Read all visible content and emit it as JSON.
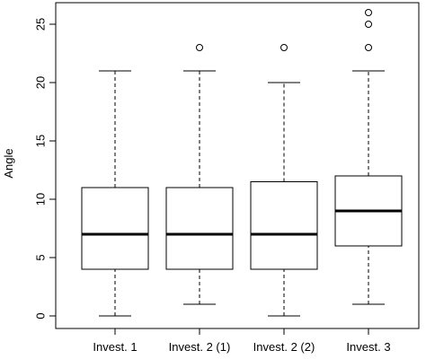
{
  "chart_data": {
    "type": "boxplot",
    "title": "",
    "xlabel": "",
    "ylabel": "Angle",
    "ylim": [
      0,
      26
    ],
    "yticks": [
      0,
      5,
      10,
      15,
      20,
      25
    ],
    "grid": false,
    "legend": "none",
    "categories": [
      "Invest. 1",
      "Invest. 2 (1)",
      "Invest. 2 (2)",
      "Invest. 3"
    ],
    "boxes": [
      {
        "category": "Invest. 1",
        "whisker_low": 0,
        "q1": 4,
        "median": 7,
        "q3": 11,
        "whisker_high": 21,
        "outliers": []
      },
      {
        "category": "Invest. 2 (1)",
        "whisker_low": 1,
        "q1": 4,
        "median": 7,
        "q3": 11,
        "whisker_high": 21,
        "outliers": [
          23
        ]
      },
      {
        "category": "Invest. 2 (2)",
        "whisker_low": 0,
        "q1": 4,
        "median": 7,
        "q3": 11.5,
        "whisker_high": 20,
        "outliers": [
          23
        ]
      },
      {
        "category": "Invest. 3",
        "whisker_low": 1,
        "q1": 6,
        "median": 9,
        "q3": 12,
        "whisker_high": 21,
        "outliers": [
          23,
          25,
          26
        ]
      }
    ],
    "colors": {
      "box_fill": "#ffffff",
      "stroke": "#000000"
    }
  }
}
